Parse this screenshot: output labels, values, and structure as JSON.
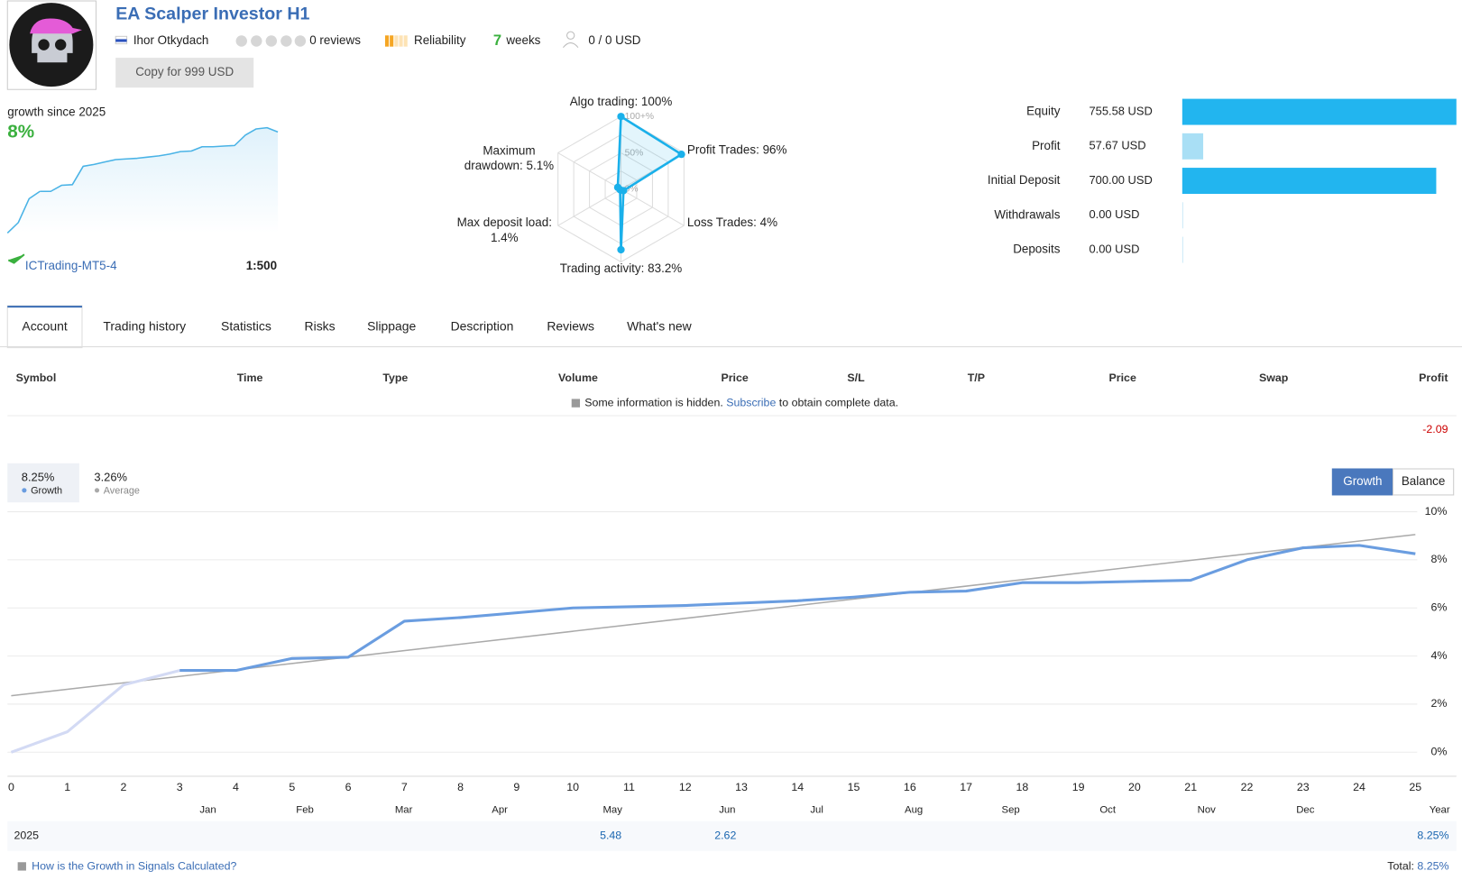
{
  "header": {
    "title": "EA Scalper Investor H1",
    "author": "Ihor Otkydach",
    "reviews": "0 reviews",
    "reliability": "Reliability",
    "weeks_count": "7",
    "weeks": "weeks",
    "subscribers": "0 / 0 USD",
    "copy_button": "Copy for 999 USD"
  },
  "summary": {
    "label": "growth since 2025",
    "value": "8%",
    "broker": "ICTrading-MT5-4",
    "leverage": "1:500"
  },
  "radar": {
    "type": "radar",
    "color": "#1ab0ea",
    "rlim": [
      0,
      100
    ],
    "axes": [
      {
        "name": "Algo trading:",
        "value": 100,
        "value_label": "100%"
      },
      {
        "name": "Profit Trades:",
        "value": 96,
        "value_label": "96%"
      },
      {
        "name": "Loss Trades:",
        "value": 4,
        "value_label": "4%"
      },
      {
        "name": "Trading activity:",
        "value": 83.2,
        "value_label": "83.2%"
      },
      {
        "name": "Max deposit load:",
        "value": 1.4,
        "value_label": "1.4%"
      },
      {
        "name": "Maximum drawdown:",
        "value": 5.1,
        "value_label": "5.1%"
      }
    ],
    "rings": [
      {
        "value": 100,
        "label": "100+%"
      },
      {
        "value": 50,
        "label": "50%"
      },
      {
        "value": 0,
        "label": "0%"
      }
    ]
  },
  "bars": {
    "type": "bar",
    "orientation": "horizontal",
    "categories": [
      "Equity",
      "Profit",
      "Initial Deposit",
      "Withdrawals",
      "Deposits"
    ],
    "values": [
      755.58,
      57.67,
      700,
      0,
      0
    ],
    "value_labels": [
      "755.58 USD",
      "57.67 USD",
      "700.00 USD",
      "0.00 USD",
      "0.00 USD"
    ],
    "colors": [
      "#22b5ef",
      "#a9dff5",
      "#22b5ef",
      "#a9dff5",
      "#a9dff5"
    ],
    "xlim": [
      0,
      755.58
    ]
  },
  "tabs": {
    "items": [
      "Account",
      "Trading history",
      "Statistics",
      "Risks",
      "Slippage",
      "Description",
      "Reviews",
      "What's new"
    ],
    "active": 0
  },
  "table": {
    "columns": [
      "Symbol",
      "Time",
      "Type",
      "Volume",
      "Price",
      "S/L",
      "T/P",
      "Price",
      "Swap",
      "Profit"
    ],
    "notice": "Some information is hidden.",
    "notice_link": "Subscribe",
    "notice_end": "to obtain complete data.",
    "last_profit": -2.09
  },
  "chart_data": {
    "type": "line",
    "xlim": [
      0,
      25
    ],
    "xticks": [
      0,
      1,
      2,
      3,
      4,
      5,
      6,
      7,
      8,
      9,
      10,
      11,
      12,
      13,
      14,
      15,
      16,
      17,
      18,
      19,
      20,
      21,
      22,
      23,
      24,
      25
    ],
    "ylim": [
      -1,
      10
    ],
    "yticks": [
      {
        "value": 0,
        "label": "0%"
      },
      {
        "value": 2,
        "label": "2%"
      },
      {
        "value": 4,
        "label": "4%"
      },
      {
        "value": 6,
        "label": "6%"
      },
      {
        "value": 8,
        "label": "8%"
      },
      {
        "value": 10,
        "label": "10%"
      }
    ],
    "grid": true,
    "x": [
      0,
      1,
      2,
      3,
      4,
      5,
      6,
      7,
      8,
      9,
      10,
      11,
      12,
      13,
      14,
      15,
      16,
      17,
      18,
      19,
      20,
      21,
      22,
      23,
      24,
      25
    ],
    "series": [
      {
        "color": "#d3daf4",
        "values": [
          0,
          0.85,
          2.8,
          3.4,
          null,
          null,
          null,
          null,
          null,
          null,
          null,
          null,
          null,
          null,
          null,
          null,
          null,
          null,
          null,
          null,
          null,
          null,
          null,
          null,
          null,
          null
        ]
      },
      {
        "name": "Growth",
        "color": "#6a9de0",
        "summary": 8.25,
        "summary_label": "8.25%",
        "values": [
          null,
          null,
          null,
          3.4,
          3.4,
          3.9,
          3.95,
          5.45,
          5.6,
          5.8,
          6.0,
          6.05,
          6.1,
          6.2,
          6.3,
          6.45,
          6.65,
          6.7,
          7.05,
          7.05,
          7.1,
          7.15,
          8.0,
          8.5,
          8.6,
          8.25
        ]
      },
      {
        "name": "Average",
        "color": "#aaaaaa",
        "summary": 3.26,
        "summary_label": "3.26%",
        "x": [
          0,
          25
        ],
        "values": [
          2.35,
          9.05
        ]
      }
    ],
    "buttons": [
      "Growth",
      "Balance"
    ],
    "active_button": 0,
    "months": [
      "Jan",
      "Feb",
      "Mar",
      "Apr",
      "May",
      "Jun",
      "Jul",
      "Aug",
      "Sep",
      "Oct",
      "Nov",
      "Dec"
    ],
    "year_label": "Year"
  },
  "year_table": {
    "year": "2025",
    "values": [
      null,
      null,
      null,
      null,
      5.48,
      2.62,
      null,
      null,
      null,
      null,
      null,
      null
    ],
    "total": 8.25,
    "total_label": "8.25%"
  },
  "footer": {
    "link": "How is the Growth in Signals Calculated?",
    "total": "Total:"
  }
}
